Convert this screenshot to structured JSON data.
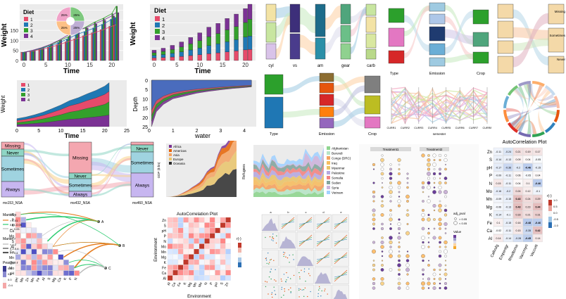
{
  "colors": {
    "diet1": "#e64b6b",
    "diet2": "#1f78b4",
    "diet3": "#33a02c",
    "diet4": "#7b3294",
    "alluvial_never": "#8fd5c4",
    "alluvial_always": "#c7b6f0",
    "alluvial_missing": "#f4a7b0",
    "alluvial_sometimes": "#9fd3e0",
    "corr_pos": "#c0392b",
    "corr_neg": "#2c6fb4",
    "mantel_orange": "#e67e22",
    "mantel_green": "#2ecc71"
  },
  "chart_data": [
    {
      "id": "weight-time-bars",
      "type": "bar",
      "legend_title": "Diet",
      "legend": [
        "1",
        "2",
        "3",
        "4"
      ],
      "xlabel": "Time",
      "ylabel": "Weight",
      "xticks": [
        "0",
        "5",
        "10",
        "15",
        "20"
      ],
      "yticks": [
        "0",
        "50",
        "100",
        "150"
      ],
      "categories": [
        "0",
        "2",
        "4",
        "6",
        "8",
        "10",
        "12",
        "14",
        "16",
        "18",
        "20",
        "21"
      ],
      "series": [
        {
          "name": "1",
          "values": [
            41,
            47,
            56,
            66,
            79,
            93,
            108,
            123,
            138,
            153,
            170,
            178
          ]
        },
        {
          "name": "2",
          "values": [
            41,
            49,
            60,
            73,
            90,
            107,
            130,
            144,
            162,
            180,
            205,
            214
          ]
        },
        {
          "name": "3",
          "values": [
            41,
            50,
            62,
            78,
            98,
            117,
            144,
            165,
            190,
            209,
            233,
            270
          ]
        },
        {
          "name": "4",
          "values": [
            41,
            51,
            64,
            80,
            101,
            126,
            151,
            161,
            182,
            200,
            222,
            238
          ]
        }
      ],
      "ylim": [
        0,
        280
      ],
      "pie": {
        "labels": [
          "25%",
          "25%",
          "25%",
          "25%"
        ],
        "values": [
          25,
          25,
          25,
          25
        ]
      }
    },
    {
      "id": "weight-time-stacked",
      "type": "bar",
      "legend_title": "Diet",
      "legend": [
        "1",
        "2",
        "3",
        "4"
      ],
      "xlabel": "Time",
      "ylabel": "Weight",
      "xticks": [
        "0",
        "5",
        "10",
        "15",
        "20"
      ],
      "yticks": [
        "0",
        "200",
        "400",
        "600",
        "800"
      ],
      "categories": [
        "0",
        "2",
        "4",
        "6",
        "8",
        "10",
        "12",
        "14",
        "16",
        "18",
        "20",
        "21"
      ],
      "series": [
        {
          "name": "1",
          "values": [
            41,
            47,
            56,
            66,
            79,
            93,
            108,
            123,
            138,
            153,
            170,
            178
          ]
        },
        {
          "name": "2",
          "values": [
            41,
            49,
            60,
            73,
            90,
            107,
            130,
            144,
            162,
            180,
            205,
            214
          ]
        },
        {
          "name": "3",
          "values": [
            41,
            50,
            62,
            78,
            98,
            117,
            144,
            165,
            190,
            209,
            233,
            270
          ]
        },
        {
          "name": "4",
          "values": [
            41,
            51,
            64,
            80,
            101,
            126,
            151,
            161,
            182,
            200,
            222,
            238
          ]
        }
      ],
      "ylim": [
        0,
        900
      ]
    },
    {
      "id": "weight-area",
      "type": "area",
      "legend": [
        "1",
        "2",
        "3",
        "4"
      ],
      "xlabel": "Time",
      "ylabel": "Weight",
      "xticks": [
        "0",
        "5",
        "10",
        "15",
        "20",
        "25"
      ],
      "yticks": [
        "0",
        "200",
        "400",
        "600"
      ],
      "x": [
        0,
        2,
        4,
        6,
        8,
        10,
        12,
        14,
        16,
        18,
        20,
        21
      ],
      "series": [
        {
          "name": "4",
          "values": [
            41,
            51,
            64,
            80,
            101,
            126,
            151,
            161,
            182,
            200,
            222,
            238
          ]
        },
        {
          "name": "3",
          "values": [
            41,
            50,
            62,
            78,
            98,
            117,
            144,
            165,
            190,
            209,
            233,
            270
          ]
        },
        {
          "name": "2",
          "values": [
            41,
            49,
            60,
            73,
            90,
            107,
            130,
            144,
            162,
            180,
            205,
            214
          ]
        },
        {
          "name": "1",
          "values": [
            41,
            47,
            56,
            66,
            79,
            93,
            108,
            123,
            138,
            153,
            170,
            178
          ]
        }
      ],
      "ylim": [
        0,
        950
      ],
      "xlim": [
        0,
        25
      ]
    },
    {
      "id": "depth-water",
      "type": "area",
      "xlabel": "water",
      "ylabel": "Depth",
      "xticks": [
        "0",
        "1",
        "2",
        "3",
        "4"
      ],
      "yticks": [
        "0",
        "5",
        "10",
        "15",
        "20",
        "25"
      ],
      "x": [
        0.1,
        0.3,
        0.6,
        1.0,
        1.5,
        2.0,
        2.5,
        3.0,
        3.5,
        4.0,
        4.3
      ],
      "series": [
        {
          "name": "1",
          "values": [
            25,
            17,
            13,
            10,
            8.5,
            7,
            6,
            5.2,
            4.5,
            4,
            3.6
          ]
        },
        {
          "name": "2",
          "values": [
            22,
            15,
            11.5,
            9,
            7.5,
            6.2,
            5.4,
            4.7,
            4.1,
            3.6,
            3.3
          ]
        },
        {
          "name": "3",
          "values": [
            19,
            13,
            10,
            7.8,
            6.5,
            5.5,
            4.8,
            4.2,
            3.7,
            3.3,
            3
          ]
        },
        {
          "name": "4",
          "values": [
            16,
            11,
            8.5,
            6.7,
            5.6,
            4.8,
            4.2,
            3.7,
            3.3,
            2.9,
            2.7
          ]
        }
      ],
      "ylim": [
        0,
        25
      ],
      "xlim": [
        0,
        4.5
      ]
    },
    {
      "id": "refugees-area",
      "type": "area",
      "ylabel": "Refugees",
      "yticks": [
        "0",
        "2000000",
        "4000000",
        "6000000"
      ],
      "legend": [
        "Afghanistan",
        "Burundi",
        "Congo (DRC)",
        "Iraq",
        "Myanmar",
        "Palestine",
        "Somalia",
        "Sudan",
        "Syria",
        "Vietnam"
      ],
      "series_colors": [
        "#8fd58f",
        "#b7e4c7",
        "#f4a261",
        "#f6bd60",
        "#e9c46a",
        "#b5a8e0",
        "#f28482",
        "#84a59d",
        "#cdb4db",
        "#a2d2ff"
      ]
    },
    {
      "id": "gdp-area",
      "type": "area",
      "ylabel": "GDP ($ bn)",
      "legend": [
        "Africa",
        "Americas",
        "Asia",
        "Europe",
        "Oceania"
      ],
      "series_colors": [
        "#7b3294",
        "#e66101",
        "#f4a261",
        "#e9c46a",
        "#2c2c2c"
      ]
    },
    {
      "id": "autocorr-small",
      "type": "heatmap",
      "title": "AutoCorrelation Plot",
      "xlabel": "Environment",
      "ylabel": "Environment",
      "vars": [
        "Al",
        "Ca",
        "Fe",
        "K",
        "Mg",
        "Mn",
        "Mo",
        "N",
        "P",
        "pH",
        "S",
        "Zn"
      ],
      "legend_title": "r(-)"
    },
    {
      "id": "autocorr-large",
      "type": "heatmap",
      "title": "AutoCorrelation Plot",
      "legend_title": "r(-)",
      "legend_ticks": [
        "1.0",
        "0.5",
        "0.0",
        "-0.5",
        "-1.0"
      ],
      "rows": [
        "Zn",
        "S",
        "pH",
        "P",
        "N",
        "Mo",
        "Mn",
        "Mg",
        "K",
        "Fe",
        "Ca",
        "Al"
      ],
      "cols": [
        "Callvulg",
        "Empenigr",
        "Rhodtome",
        "Vaccmyrt",
        "Vaccviti"
      ],
      "values": [
        [
          "-0.11",
          "-0.24",
          "0.21",
          "0.19",
          "0.17"
        ],
        [
          "-0.14",
          "-0.13",
          "0.09",
          "0.04",
          "-0.05"
        ],
        [
          "-0.17",
          "-0.36",
          "-0.2",
          "-0.46",
          "-0.15"
        ],
        [
          "-0.09",
          "-0.11",
          "0.06",
          "-0.05",
          "0.04"
        ],
        [
          "0.15",
          "-0.11",
          "0.04",
          "0.1",
          "-0.46"
        ],
        [
          "-0.16",
          "-0.2",
          "0.24",
          "0.12",
          "-0.1"
        ],
        [
          "-0.09",
          "-0.15",
          "0.43",
          "0.24",
          "0.29"
        ],
        [
          "-0.06",
          "-0.13",
          "0.43",
          "0.23",
          "0.44"
        ],
        [
          "-0.14",
          "-0.1",
          "0.33",
          "0.21",
          "0.31"
        ],
        [
          "0.1",
          "-0.15",
          "0.16",
          "-0.48",
          "-0.46"
        ],
        [
          "-0.02",
          "-0.11",
          "0.15",
          "-0.35",
          "0.42"
        ],
        [
          "0.14",
          "-0.14",
          "-0.28",
          "-0.45",
          "0.14"
        ]
      ]
    },
    {
      "id": "mantel-test",
      "type": "heatmap",
      "vars": [
        "pH",
        "Mo",
        "Zn",
        "Mn",
        "Fe",
        "Al",
        "S",
        "Mg",
        "Ca",
        "K",
        "P",
        "N"
      ],
      "legend_mantel_p_title": "Mantel p",
      "legend_mantel_p": [
        "< 0.01",
        "0.01-0.05",
        ">= 0.05"
      ],
      "legend_mantel_r_title": "Mantel r",
      "legend_mantel_r": [
        "< 0.2",
        "0.2-0.4",
        ">= 0.4"
      ],
      "legend_pearson_title": "Pearson r",
      "legend_pearson_ticks": [
        "0.8",
        "0.4",
        "0.0",
        "-0.4"
      ],
      "targets": [
        "A",
        "B",
        "C"
      ]
    },
    {
      "id": "sankey-cyl",
      "type": "table",
      "axis_labels": [
        "cyl",
        "vs",
        "am",
        "gear",
        "carb"
      ]
    },
    {
      "id": "sankey-type-emission",
      "type": "table",
      "axis_labels": [
        "Type",
        "Emission",
        "Crop"
      ]
    },
    {
      "id": "alluvial-measles",
      "type": "table",
      "axis_labels": [
        "ms153_NSA",
        "ms432_NSA",
        "ms460_NSA"
      ],
      "strata": [
        "Missing",
        "Never",
        "Sometimes",
        "Always"
      ]
    },
    {
      "id": "parallel-semester",
      "type": "table",
      "xlabel": "semester",
      "axis_labels": [
        "CURR1",
        "CURR2",
        "CURR3",
        "CURR4",
        "CURR5",
        "CURR6",
        "CURR7",
        "CURR8"
      ]
    },
    {
      "id": "bubble-dotplot",
      "type": "scatter",
      "facets": [
        "Treatment1",
        "Treatment2"
      ],
      "size_legend_title": "adj_pval",
      "size_legend": [
        "> 0.05",
        "< 0.05"
      ],
      "color_legend_title": "Value"
    },
    {
      "id": "pairs-matrix",
      "type": "scatter",
      "facets": [
        "a",
        "b",
        "c",
        "d",
        "e"
      ]
    },
    {
      "id": "chord",
      "type": "pie"
    },
    {
      "id": "sankey-right",
      "type": "table",
      "axis_labels": [
        "ms153_NSA",
        "ms432_NSA",
        "ms460_NSA"
      ],
      "strata": [
        "Missing",
        "Sometimes",
        "Never"
      ]
    }
  ]
}
